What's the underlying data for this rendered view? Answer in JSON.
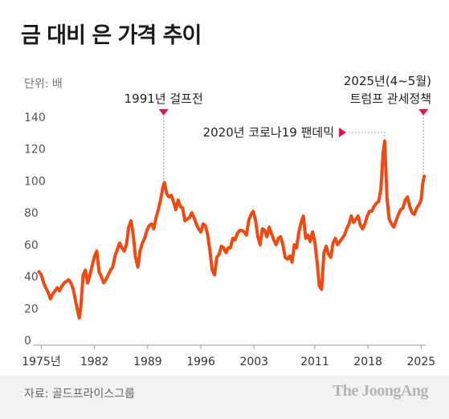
{
  "title": "금 대비 은 가격 추이",
  "unit_label": "단위: 배",
  "source": "자료: 골드프라이스그룹",
  "brand": "The JoongAng",
  "colors": {
    "series": "#f04a13",
    "marker": "#d81b4a",
    "axis": "#999999",
    "dotted": "#999999"
  },
  "chart_data": {
    "type": "line",
    "title": "금 대비 은 가격 추이",
    "ylabel": "단위: 배",
    "xlabel": "",
    "xlim": [
      1974,
      2025.6
    ],
    "ylim": [
      0,
      140
    ],
    "grid": false,
    "x_ticks": [
      1975,
      1982,
      1989,
      1996,
      2003,
      2011,
      2018,
      2025
    ],
    "x_tick_labels": [
      "1975년",
      "1982",
      "1989",
      "1996",
      "2003",
      "2011",
      "2018",
      "2025"
    ],
    "y_ticks": [
      0,
      20,
      40,
      60,
      80,
      100,
      120,
      140
    ],
    "annotations": [
      {
        "x": 1991.1,
        "y": 100,
        "label_lines": [
          "1991년 걸프전"
        ],
        "marker": "triangle-down"
      },
      {
        "x": 2020.2,
        "y": 124,
        "label_lines": [
          "2020년 코로나19 팬데믹"
        ],
        "marker": "triangle-right"
      },
      {
        "x": 2025.3,
        "y": 103,
        "label_lines": [
          "2025년(4~5월)",
          "트럼프 관세정책"
        ],
        "marker": "triangle-down"
      }
    ],
    "series": [
      {
        "x": [
          1974.7,
          1975.0,
          1975.3,
          1975.6,
          1975.9,
          1976.2,
          1976.5,
          1976.8,
          1977.1,
          1977.4,
          1977.7,
          1978.0,
          1978.3,
          1978.6,
          1978.9,
          1979.2,
          1979.5,
          1979.8,
          1980.0,
          1980.2,
          1980.5,
          1980.8,
          1981.1,
          1981.4,
          1981.7,
          1982.0,
          1982.3,
          1982.6,
          1982.9,
          1983.2,
          1983.5,
          1983.8,
          1984.1,
          1984.4,
          1984.7,
          1985.0,
          1985.3,
          1985.6,
          1985.9,
          1986.2,
          1986.5,
          1986.8,
          1987.1,
          1987.4,
          1987.7,
          1988.0,
          1988.3,
          1988.6,
          1988.9,
          1989.2,
          1989.5,
          1989.8,
          1990.1,
          1990.4,
          1990.7,
          1991.0,
          1991.2,
          1991.5,
          1991.8,
          1992.1,
          1992.4,
          1992.7,
          1993.0,
          1993.3,
          1993.6,
          1993.9,
          1994.2,
          1994.5,
          1994.8,
          1995.1,
          1995.4,
          1995.7,
          1996.0,
          1996.3,
          1996.6,
          1996.9,
          1997.2,
          1997.5,
          1997.8,
          1998.1,
          1998.4,
          1998.7,
          1999.0,
          1999.3,
          1999.6,
          1999.9,
          2000.2,
          2000.5,
          2000.8,
          2001.1,
          2001.4,
          2001.7,
          2002.0,
          2002.3,
          2002.6,
          2002.9,
          2003.2,
          2003.5,
          2003.8,
          2004.1,
          2004.4,
          2004.7,
          2005.0,
          2005.3,
          2005.6,
          2005.9,
          2006.2,
          2006.5,
          2006.8,
          2007.1,
          2007.4,
          2007.7,
          2008.0,
          2008.3,
          2008.6,
          2008.9,
          2009.2,
          2009.5,
          2009.8,
          2010.1,
          2010.4,
          2010.7,
          2011.0,
          2011.3,
          2011.6,
          2011.9,
          2012.2,
          2012.5,
          2012.8,
          2013.1,
          2013.4,
          2013.7,
          2014.0,
          2014.3,
          2014.6,
          2014.9,
          2015.2,
          2015.5,
          2015.8,
          2016.1,
          2016.4,
          2016.7,
          2017.0,
          2017.3,
          2017.6,
          2017.9,
          2018.2,
          2018.5,
          2018.8,
          2019.1,
          2019.4,
          2019.7,
          2020.0,
          2020.2,
          2020.35,
          2020.5,
          2020.8,
          2021.1,
          2021.4,
          2021.7,
          2022.0,
          2022.3,
          2022.6,
          2022.9,
          2023.2,
          2023.5,
          2023.8,
          2024.1,
          2024.4,
          2024.7,
          2025.0,
          2025.2,
          2025.4
        ],
        "y": [
          43,
          41,
          36,
          33,
          30,
          26,
          29,
          31,
          33,
          31,
          34,
          36,
          37,
          38,
          36,
          32,
          25,
          18,
          14,
          21,
          41,
          44,
          36,
          41,
          47,
          53,
          56,
          43,
          40,
          36,
          38,
          41,
          44,
          46,
          53,
          57,
          61,
          58,
          56,
          60,
          71,
          75,
          66,
          52,
          46,
          56,
          61,
          64,
          69,
          72,
          73,
          70,
          77,
          82,
          88,
          96,
          99,
          92,
          90,
          91,
          87,
          82,
          88,
          84,
          83,
          75,
          76,
          77,
          80,
          77,
          73,
          70,
          68,
          73,
          72,
          66,
          56,
          44,
          41,
          52,
          54,
          59,
          58,
          55,
          58,
          58,
          64,
          63,
          67,
          69,
          69,
          68,
          66,
          75,
          79,
          81,
          75,
          65,
          60,
          70,
          69,
          65,
          71,
          67,
          63,
          60,
          64,
          65,
          60,
          52,
          51,
          53,
          49,
          60,
          58,
          68,
          74,
          78,
          64,
          66,
          62,
          68,
          62,
          49,
          34,
          32,
          55,
          59,
          54,
          52,
          61,
          64,
          60,
          62,
          64,
          66,
          70,
          73,
          78,
          74,
          76,
          78,
          72,
          70,
          73,
          78,
          81,
          81,
          84,
          86,
          87,
          95,
          118,
          125,
          108,
          89,
          76,
          73,
          71,
          75,
          79,
          82,
          83,
          88,
          90,
          84,
          80,
          79,
          83,
          85,
          88,
          98,
          103
        ]
      }
    ]
  }
}
